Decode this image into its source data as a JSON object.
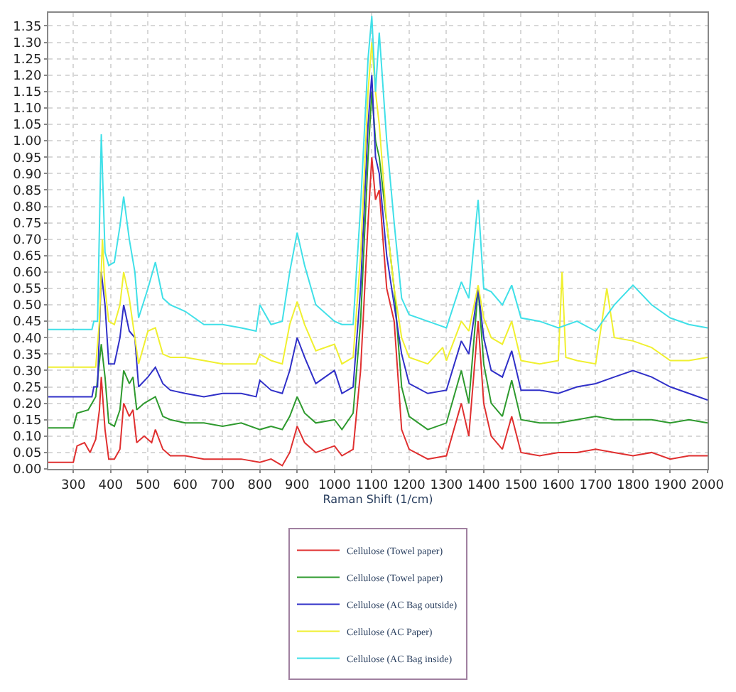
{
  "chart_data": {
    "type": "line",
    "xlabel": "Raman Shift (1/cm)",
    "xlim": [
      233,
      2000
    ],
    "ylim": [
      0,
      1.39
    ],
    "xticks": [
      300,
      400,
      500,
      600,
      700,
      800,
      900,
      1000,
      1100,
      1200,
      1300,
      1400,
      1500,
      1600,
      1700,
      1800,
      1900,
      2000
    ],
    "yticks": [
      {
        "value": 0,
        "label": "0.00"
      },
      {
        "value": 0.05,
        "label": "0.05"
      },
      {
        "value": 0.1,
        "label": "0.10"
      },
      {
        "value": 0.15,
        "label": "0.15"
      },
      {
        "value": 0.2,
        "label": "0.20"
      },
      {
        "value": 0.25,
        "label": "0.25"
      },
      {
        "value": 0.3,
        "label": "0.30"
      },
      {
        "value": 0.35,
        "label": "0.35"
      },
      {
        "value": 0.4,
        "label": "0.40"
      },
      {
        "value": 0.45,
        "label": "0.45"
      },
      {
        "value": 0.5,
        "label": "0.50"
      },
      {
        "value": 0.55,
        "label": "0.55"
      },
      {
        "value": 0.6,
        "label": "0.60"
      },
      {
        "value": 0.65,
        "label": "0.65"
      },
      {
        "value": 0.7,
        "label": "0.70"
      },
      {
        "value": 0.75,
        "label": "0.75"
      },
      {
        "value": 0.8,
        "label": "0.80"
      },
      {
        "value": 0.85,
        "label": "0.85"
      },
      {
        "value": 0.9,
        "label": "0.90"
      },
      {
        "value": 0.95,
        "label": "0.95"
      },
      {
        "value": 1.0,
        "label": "1.00"
      },
      {
        "value": 1.05,
        "label": "1.05"
      },
      {
        "value": 1.1,
        "label": "1.10"
      },
      {
        "value": 1.15,
        "label": "1.15"
      },
      {
        "value": 1.2,
        "label": "1.20"
      },
      {
        "value": 1.25,
        "label": "1.25"
      },
      {
        "value": 1.3,
        "label": "1.30"
      },
      {
        "value": 1.35,
        "label": "1.35"
      }
    ],
    "grid": true,
    "legend": "bottom",
    "marker": "none",
    "line_style": "solid",
    "series": [
      {
        "name": "Cellulose (Towel paper)",
        "color": "#e03030",
        "x": [
          233,
          300,
          310,
          330,
          345,
          360,
          370,
          375,
          385,
          395,
          410,
          425,
          435,
          450,
          460,
          470,
          490,
          510,
          520,
          540,
          560,
          600,
          650,
          700,
          750,
          800,
          830,
          860,
          880,
          900,
          920,
          950,
          1000,
          1020,
          1050,
          1070,
          1090,
          1100,
          1110,
          1120,
          1140,
          1160,
          1180,
          1200,
          1250,
          1300,
          1340,
          1360,
          1385,
          1400,
          1420,
          1450,
          1475,
          1500,
          1550,
          1600,
          1650,
          1700,
          1750,
          1800,
          1850,
          1900,
          1950,
          2000
        ],
        "values": [
          0.02,
          0.02,
          0.07,
          0.08,
          0.05,
          0.09,
          0.18,
          0.28,
          0.12,
          0.03,
          0.03,
          0.06,
          0.2,
          0.16,
          0.18,
          0.08,
          0.1,
          0.08,
          0.12,
          0.06,
          0.04,
          0.04,
          0.03,
          0.03,
          0.03,
          0.02,
          0.03,
          0.01,
          0.05,
          0.13,
          0.08,
          0.05,
          0.07,
          0.04,
          0.06,
          0.3,
          0.75,
          0.95,
          0.82,
          0.85,
          0.55,
          0.45,
          0.12,
          0.06,
          0.03,
          0.04,
          0.2,
          0.1,
          0.45,
          0.2,
          0.1,
          0.06,
          0.16,
          0.05,
          0.04,
          0.05,
          0.05,
          0.06,
          0.05,
          0.04,
          0.05,
          0.03,
          0.04,
          0.04
        ]
      },
      {
        "name": "Cellulose (Towel paper)",
        "color": "#2e9a2e",
        "x": [
          233,
          300,
          310,
          340,
          360,
          375,
          385,
          395,
          410,
          425,
          435,
          450,
          460,
          470,
          490,
          520,
          540,
          560,
          600,
          650,
          700,
          750,
          800,
          830,
          860,
          880,
          900,
          920,
          950,
          1000,
          1020,
          1050,
          1070,
          1090,
          1100,
          1110,
          1120,
          1140,
          1160,
          1180,
          1200,
          1250,
          1300,
          1340,
          1360,
          1385,
          1400,
          1420,
          1450,
          1475,
          1500,
          1550,
          1600,
          1650,
          1700,
          1750,
          1800,
          1850,
          1900,
          1950,
          2000
        ],
        "values": [
          0.125,
          0.125,
          0.17,
          0.18,
          0.22,
          0.38,
          0.28,
          0.14,
          0.13,
          0.18,
          0.3,
          0.26,
          0.28,
          0.18,
          0.2,
          0.22,
          0.16,
          0.15,
          0.14,
          0.14,
          0.13,
          0.14,
          0.12,
          0.13,
          0.12,
          0.16,
          0.22,
          0.17,
          0.14,
          0.15,
          0.12,
          0.17,
          0.45,
          0.95,
          1.15,
          1.0,
          0.95,
          0.75,
          0.55,
          0.25,
          0.16,
          0.12,
          0.14,
          0.3,
          0.2,
          0.55,
          0.32,
          0.2,
          0.16,
          0.27,
          0.15,
          0.14,
          0.14,
          0.15,
          0.16,
          0.15,
          0.15,
          0.15,
          0.14,
          0.15,
          0.14
        ]
      },
      {
        "name": "Cellulose (AC Bag outside)",
        "color": "#3030c8",
        "x": [
          233,
          350,
          355,
          365,
          375,
          385,
          395,
          410,
          425,
          435,
          450,
          465,
          475,
          500,
          520,
          540,
          560,
          600,
          650,
          700,
          750,
          790,
          800,
          830,
          860,
          880,
          900,
          920,
          950,
          1000,
          1020,
          1050,
          1070,
          1090,
          1100,
          1110,
          1120,
          1140,
          1160,
          1180,
          1200,
          1250,
          1300,
          1340,
          1360,
          1385,
          1400,
          1420,
          1450,
          1475,
          1500,
          1550,
          1600,
          1650,
          1700,
          1750,
          1800,
          1850,
          1900,
          1950,
          2000
        ],
        "values": [
          0.22,
          0.22,
          0.25,
          0.25,
          0.6,
          0.5,
          0.32,
          0.32,
          0.4,
          0.5,
          0.42,
          0.4,
          0.25,
          0.28,
          0.31,
          0.26,
          0.24,
          0.23,
          0.22,
          0.23,
          0.23,
          0.22,
          0.27,
          0.24,
          0.23,
          0.3,
          0.4,
          0.34,
          0.26,
          0.3,
          0.23,
          0.25,
          0.55,
          1.05,
          1.2,
          0.95,
          0.9,
          0.65,
          0.5,
          0.35,
          0.26,
          0.23,
          0.24,
          0.39,
          0.35,
          0.55,
          0.4,
          0.3,
          0.28,
          0.36,
          0.24,
          0.24,
          0.23,
          0.25,
          0.26,
          0.28,
          0.3,
          0.28,
          0.25,
          0.23,
          0.21
        ]
      },
      {
        "name": "Cellulose (AC Paper)",
        "color": "#f0f030",
        "x": [
          233,
          360,
          370,
          378,
          385,
          395,
          410,
          425,
          435,
          450,
          465,
          475,
          500,
          520,
          540,
          560,
          600,
          650,
          700,
          750,
          790,
          800,
          830,
          860,
          880,
          900,
          920,
          950,
          1000,
          1020,
          1050,
          1070,
          1090,
          1100,
          1110,
          1120,
          1140,
          1160,
          1180,
          1200,
          1250,
          1290,
          1300,
          1340,
          1360,
          1385,
          1400,
          1420,
          1450,
          1475,
          1500,
          1550,
          1600,
          1610,
          1620,
          1650,
          1700,
          1730,
          1750,
          1800,
          1850,
          1900,
          1950,
          2000
        ],
        "values": [
          0.31,
          0.31,
          0.45,
          0.7,
          0.55,
          0.45,
          0.44,
          0.5,
          0.6,
          0.52,
          0.4,
          0.32,
          0.42,
          0.43,
          0.35,
          0.34,
          0.34,
          0.33,
          0.32,
          0.32,
          0.32,
          0.35,
          0.33,
          0.32,
          0.44,
          0.51,
          0.44,
          0.36,
          0.38,
          0.32,
          0.34,
          0.65,
          1.15,
          1.3,
          1.15,
          1.05,
          0.75,
          0.55,
          0.4,
          0.34,
          0.32,
          0.37,
          0.33,
          0.45,
          0.42,
          0.56,
          0.46,
          0.4,
          0.38,
          0.45,
          0.33,
          0.32,
          0.33,
          0.6,
          0.34,
          0.33,
          0.32,
          0.55,
          0.4,
          0.39,
          0.37,
          0.33,
          0.33,
          0.34
        ]
      },
      {
        "name": "Cellulose (AC Bag inside)",
        "color": "#40e0e8",
        "x": [
          233,
          350,
          355,
          365,
          375,
          385,
          395,
          410,
          425,
          435,
          450,
          465,
          475,
          500,
          520,
          540,
          560,
          600,
          650,
          700,
          750,
          790,
          800,
          830,
          860,
          880,
          900,
          920,
          950,
          1000,
          1020,
          1050,
          1070,
          1090,
          1100,
          1110,
          1120,
          1140,
          1160,
          1180,
          1200,
          1250,
          1300,
          1340,
          1360,
          1385,
          1400,
          1420,
          1450,
          1475,
          1500,
          1550,
          1600,
          1650,
          1700,
          1750,
          1800,
          1850,
          1900,
          1950,
          2000
        ],
        "values": [
          0.425,
          0.425,
          0.45,
          0.45,
          1.02,
          0.66,
          0.62,
          0.63,
          0.74,
          0.83,
          0.7,
          0.6,
          0.46,
          0.55,
          0.63,
          0.52,
          0.5,
          0.48,
          0.44,
          0.44,
          0.43,
          0.42,
          0.5,
          0.44,
          0.45,
          0.6,
          0.72,
          0.62,
          0.5,
          0.45,
          0.44,
          0.44,
          0.8,
          1.25,
          1.38,
          1.15,
          1.33,
          1.0,
          0.75,
          0.52,
          0.47,
          0.45,
          0.43,
          0.57,
          0.52,
          0.82,
          0.55,
          0.54,
          0.5,
          0.56,
          0.46,
          0.45,
          0.43,
          0.45,
          0.42,
          0.5,
          0.56,
          0.5,
          0.46,
          0.44,
          0.43
        ]
      }
    ]
  }
}
